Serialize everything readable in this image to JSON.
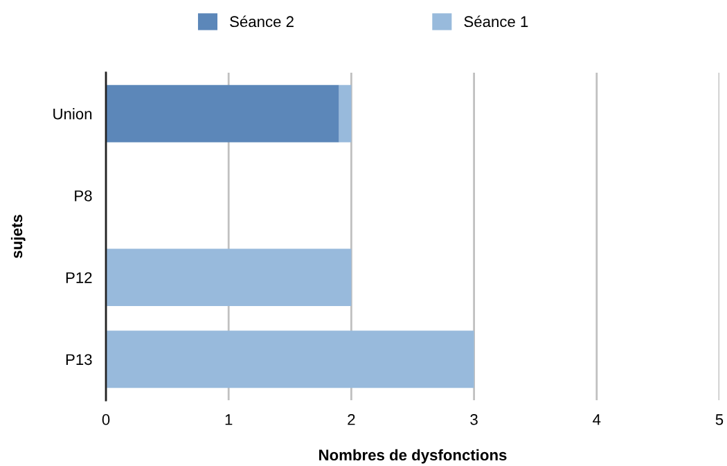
{
  "chart_data": {
    "type": "bar",
    "orientation": "horizontal",
    "stacked": true,
    "xlabel": "Nombres de dysfonctions",
    "ylabel": "sujets",
    "categories": [
      "Union",
      "P8",
      "P12",
      "P13"
    ],
    "series": [
      {
        "name": "Séance 2",
        "color": "#5c87b9",
        "values": [
          1.9,
          0,
          0,
          0
        ]
      },
      {
        "name": "Séance 1",
        "color": "#98badc",
        "values": [
          0.1,
          0,
          2,
          3
        ]
      }
    ],
    "xlim": [
      0,
      5
    ],
    "xticks": [
      0,
      1,
      2,
      3,
      4,
      5
    ],
    "grid": "x",
    "legend": "top"
  }
}
